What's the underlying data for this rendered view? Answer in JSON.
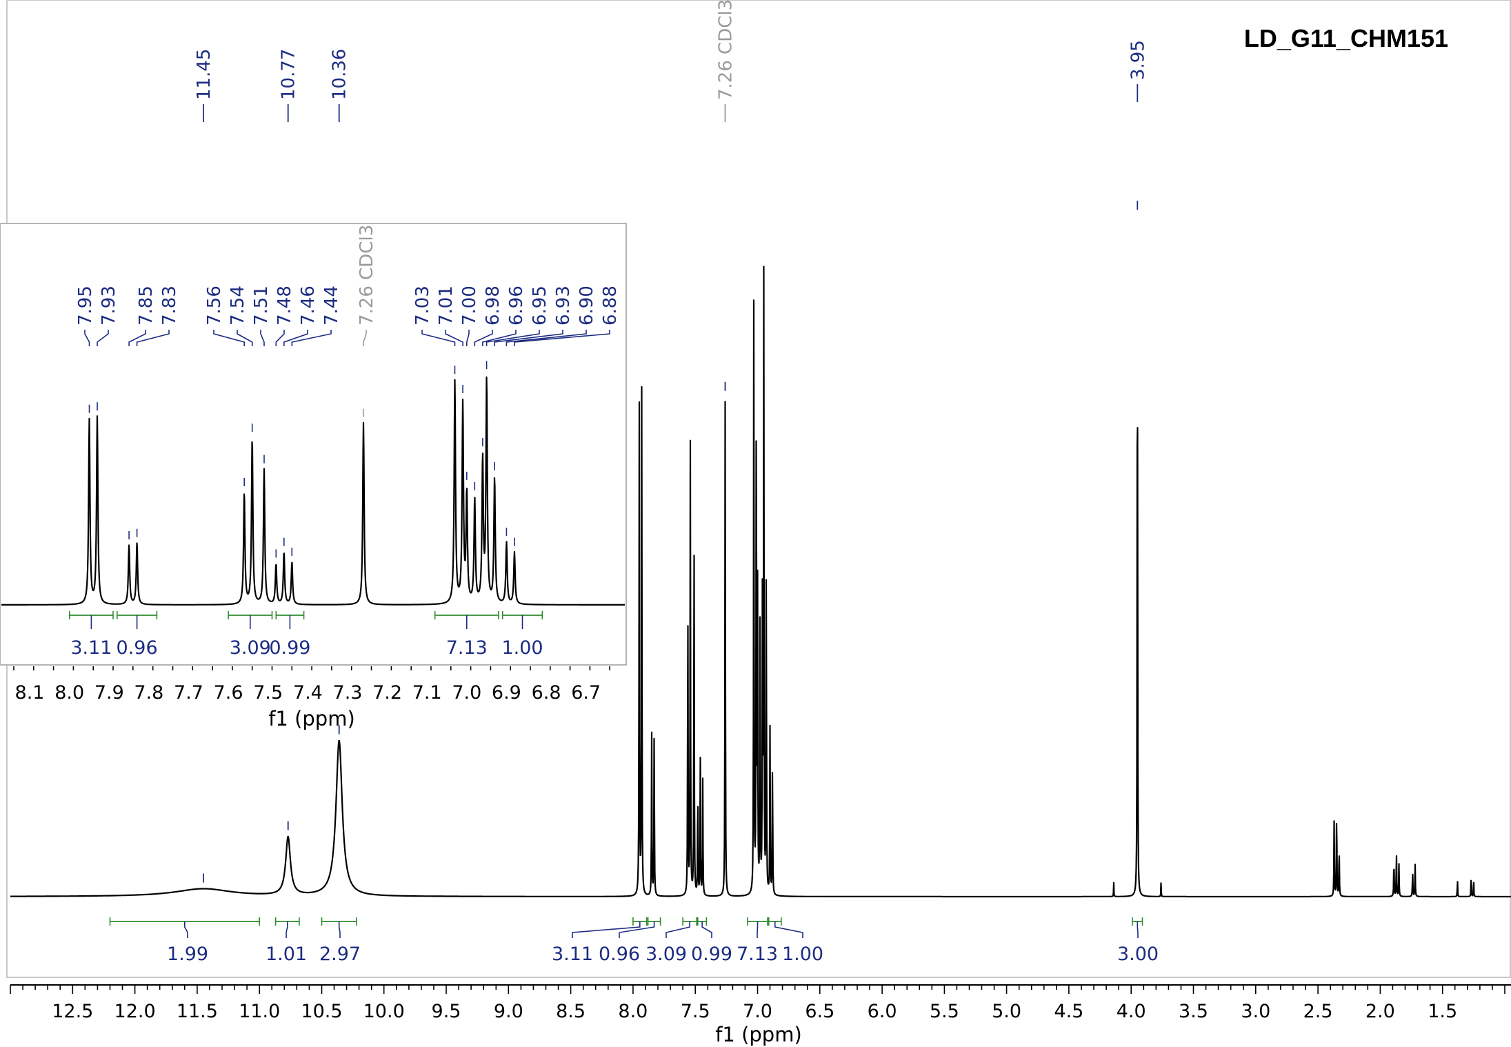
{
  "title": "LD_G11_CHM151",
  "chart_data": [
    {
      "type": "line",
      "name": "main-spectrum",
      "title": "LD_G11_CHM151",
      "xlabel": "f1 (ppm)",
      "ylabel": "",
      "xlim": [
        13.0,
        0.95
      ],
      "x_reversed": true,
      "x_ticks": [
        "12.5",
        "12.0",
        "11.5",
        "11.0",
        "10.5",
        "10.0",
        "9.5",
        "9.0",
        "8.5",
        "8.0",
        "7.5",
        "7.0",
        "6.5",
        "6.0",
        "5.5",
        "5.0",
        "4.5",
        "4.0",
        "3.5",
        "3.0",
        "2.5",
        "2.0",
        "1.5"
      ],
      "peaks": [
        {
          "ppm": 11.45,
          "label": "11.45",
          "height": 0.012,
          "width": 0.55
        },
        {
          "ppm": 10.77,
          "label": "10.77",
          "height": 0.09,
          "width": 0.045
        },
        {
          "ppm": 10.36,
          "label": "10.36",
          "height": 0.24,
          "width": 0.06
        },
        {
          "ppm": 7.95,
          "label": "7.95",
          "height": 0.78,
          "width": 0.004
        },
        {
          "ppm": 7.93,
          "label": "7.93",
          "height": 0.79,
          "width": 0.004
        },
        {
          "ppm": 7.85,
          "label": "7.85",
          "height": 0.25,
          "width": 0.004
        },
        {
          "ppm": 7.83,
          "label": "7.83",
          "height": 0.26,
          "width": 0.004
        },
        {
          "ppm": 7.56,
          "label": "7.56",
          "height": 0.47,
          "width": 0.004
        },
        {
          "ppm": 7.54,
          "label": "7.54",
          "height": 0.7,
          "width": 0.004
        },
        {
          "ppm": 7.51,
          "label": "7.51",
          "height": 0.57,
          "width": 0.004
        },
        {
          "ppm": 7.48,
          "label": "7.48",
          "height": 0.17,
          "width": 0.004
        },
        {
          "ppm": 7.46,
          "label": "7.46",
          "height": 0.22,
          "width": 0.004
        },
        {
          "ppm": 7.44,
          "label": "7.44",
          "height": 0.18,
          "width": 0.004
        },
        {
          "ppm": 7.26,
          "label": "7.26 CDCl3",
          "height": 0.77,
          "width": 0.004,
          "solvent": true
        },
        {
          "ppm": 7.03,
          "label": "7.03",
          "height": 0.94,
          "width": 0.004
        },
        {
          "ppm": 7.01,
          "label": "7.01",
          "height": 0.84,
          "width": 0.004
        },
        {
          "ppm": 7.0,
          "label": "7.00",
          "height": 0.46,
          "width": 0.004
        },
        {
          "ppm": 6.98,
          "label": "6.98",
          "height": 0.44,
          "width": 0.004
        },
        {
          "ppm": 6.96,
          "label": "6.96",
          "height": 0.6,
          "width": 0.004
        },
        {
          "ppm": 6.95,
          "label": "6.95",
          "height": 0.94,
          "width": 0.004
        },
        {
          "ppm": 6.93,
          "label": "6.93",
          "height": 0.53,
          "width": 0.004
        },
        {
          "ppm": 6.9,
          "label": "6.90",
          "height": 0.26,
          "width": 0.004
        },
        {
          "ppm": 6.88,
          "label": "6.88",
          "height": 0.22,
          "width": 0.004
        },
        {
          "ppm": 3.95,
          "label": "3.95",
          "height": 1.05,
          "width": 0.004
        },
        {
          "ppm": 4.14,
          "label": "",
          "height": 0.022,
          "width": 0.003
        },
        {
          "ppm": 3.76,
          "label": "",
          "height": 0.022,
          "width": 0.003
        },
        {
          "ppm": 2.37,
          "label": "",
          "height": 0.12,
          "width": 0.004
        },
        {
          "ppm": 2.35,
          "label": "",
          "height": 0.14,
          "width": 0.004
        },
        {
          "ppm": 2.33,
          "label": "",
          "height": 0.08,
          "width": 0.004
        },
        {
          "ppm": 1.89,
          "label": "",
          "height": 0.06,
          "width": 0.004
        },
        {
          "ppm": 1.87,
          "label": "",
          "height": 0.07,
          "width": 0.004
        },
        {
          "ppm": 1.85,
          "label": "",
          "height": 0.05,
          "width": 0.004
        },
        {
          "ppm": 1.74,
          "label": "",
          "height": 0.04,
          "width": 0.004
        },
        {
          "ppm": 1.72,
          "label": "",
          "height": 0.05,
          "width": 0.004
        },
        {
          "ppm": 1.38,
          "label": "",
          "height": 0.03,
          "width": 0.003
        },
        {
          "ppm": 1.27,
          "label": "",
          "height": 0.04,
          "width": 0.003
        },
        {
          "ppm": 1.25,
          "label": "",
          "height": 0.03,
          "width": 0.003
        }
      ],
      "integrals": [
        {
          "from": 12.2,
          "to": 11.0,
          "value": "1.99"
        },
        {
          "from": 10.87,
          "to": 10.68,
          "value": "1.01"
        },
        {
          "from": 10.5,
          "to": 10.22,
          "value": "2.97"
        },
        {
          "from": 8.0,
          "to": 7.89,
          "value": "3.11"
        },
        {
          "from": 7.88,
          "to": 7.78,
          "value": "0.96"
        },
        {
          "from": 7.6,
          "to": 7.49,
          "value": "3.09"
        },
        {
          "from": 7.48,
          "to": 7.41,
          "value": "0.99"
        },
        {
          "from": 7.08,
          "to": 6.92,
          "value": "7.13"
        },
        {
          "from": 6.91,
          "to": 6.81,
          "value": "1.00"
        },
        {
          "from": 3.99,
          "to": 3.91,
          "value": "3.00"
        }
      ]
    },
    {
      "type": "line",
      "name": "inset-expansion",
      "xlabel": "f1 (ppm)",
      "xlim": [
        8.14,
        6.63
      ],
      "x_reversed": true,
      "x_ticks": [
        "8.1",
        "8.0",
        "7.9",
        "7.8",
        "7.7",
        "7.6",
        "7.5",
        "7.4",
        "7.3",
        "7.2",
        "7.1",
        "7.0",
        "6.9",
        "6.8",
        "6.7"
      ],
      "integrals": [
        {
          "from": 8.0,
          "to": 7.89,
          "value": "3.11"
        },
        {
          "from": 7.88,
          "to": 7.78,
          "value": "0.96"
        },
        {
          "from": 7.6,
          "to": 7.49,
          "value": "3.09"
        },
        {
          "from": 7.48,
          "to": 7.41,
          "value": "0.99"
        },
        {
          "from": 7.08,
          "to": 6.92,
          "value": "7.13"
        },
        {
          "from": 6.91,
          "to": 6.81,
          "value": "1.00"
        }
      ]
    }
  ]
}
